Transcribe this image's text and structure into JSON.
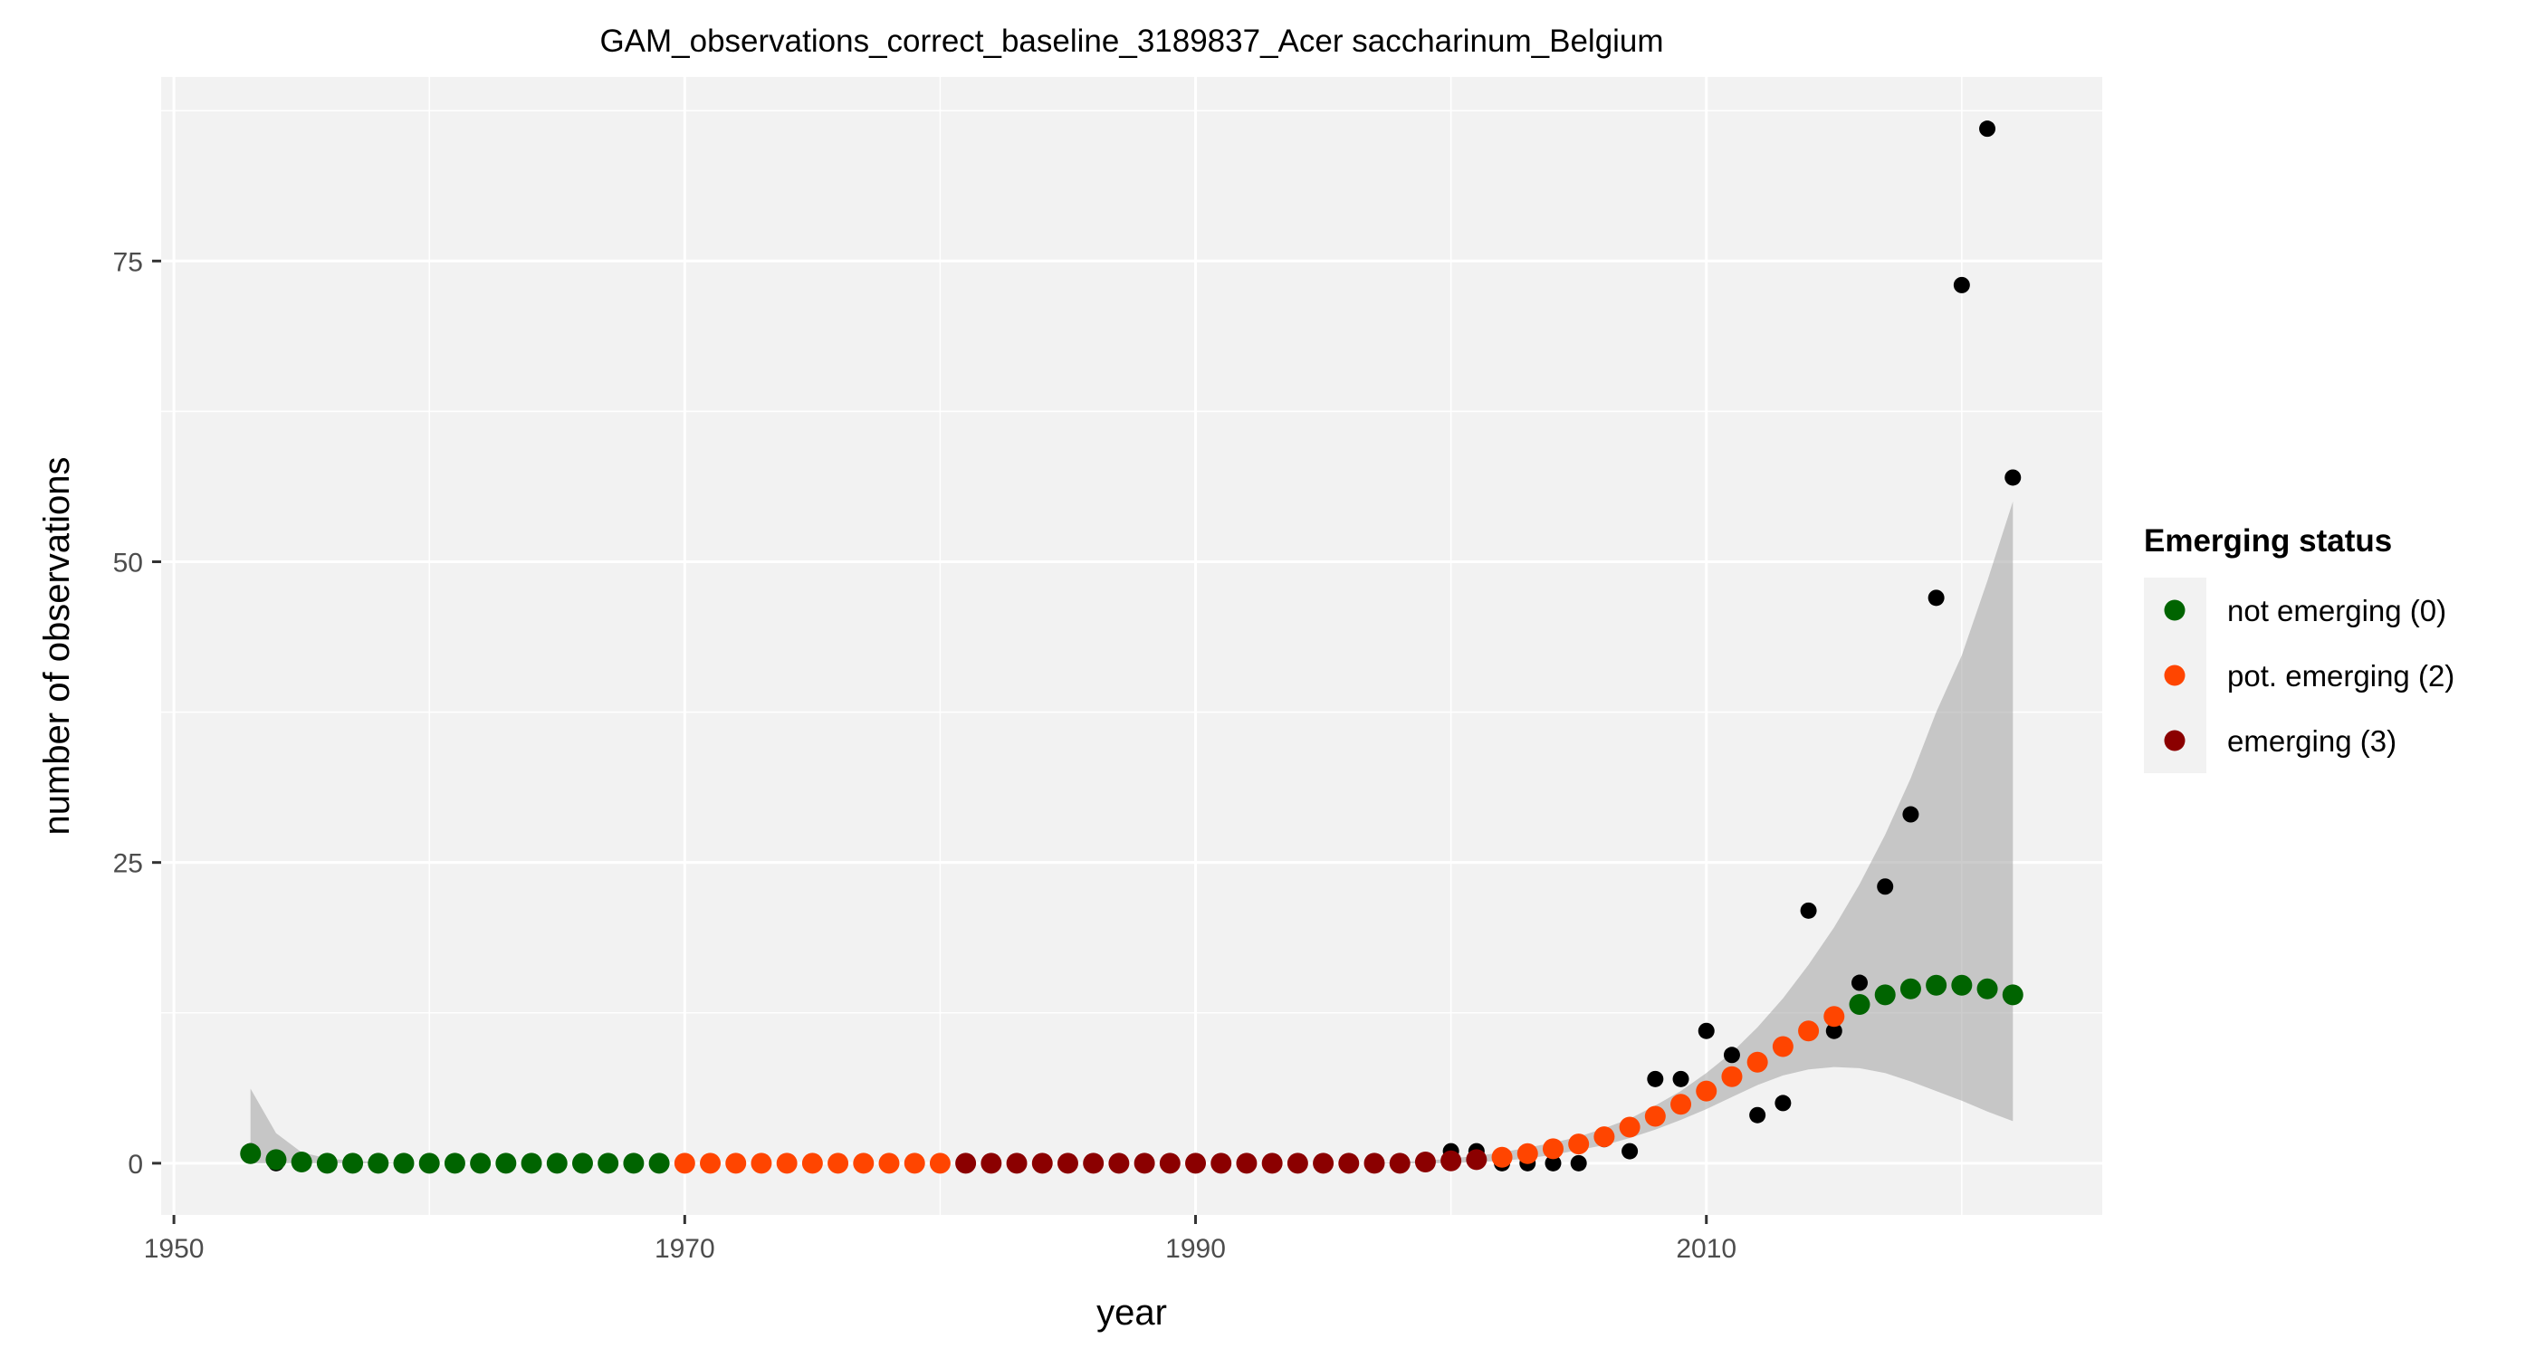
{
  "chart_data": {
    "type": "scatter",
    "title": "GAM_observations_correct_baseline_3189837_Acer saccharinum_Belgium",
    "xlabel": "year",
    "ylabel": "number of observations",
    "xlim": [
      1949.5,
      2025.5
    ],
    "ylim": [
      -4.3,
      90.3
    ],
    "x_ticks": [
      1950,
      1970,
      1990,
      2010
    ],
    "x_tick_labels": [
      "1950",
      "1970",
      "1990",
      "2010"
    ],
    "y_ticks": [
      0,
      25,
      50,
      75
    ],
    "y_tick_labels": [
      "0",
      "25",
      "50",
      "75"
    ],
    "grid": true,
    "panel_background": "#f2f2f2",
    "grid_color": "#ffffff",
    "legend": {
      "title": "Emerging status",
      "position": "right",
      "entries": [
        {
          "label": "not emerging (0)",
          "color": "#006400"
        },
        {
          "label": "pot. emerging (2)",
          "color": "#ff4500"
        },
        {
          "label": "emerging (3)",
          "color": "#8b0000"
        }
      ]
    },
    "observed": {
      "color": "#000000",
      "x": [
        1953,
        1954,
        1955,
        1956,
        1957,
        1958,
        1959,
        1960,
        1961,
        1962,
        1963,
        1964,
        1965,
        1966,
        1967,
        1968,
        1969,
        1970,
        1971,
        1972,
        1973,
        1974,
        1975,
        1976,
        1977,
        1978,
        1979,
        1980,
        1981,
        1982,
        1983,
        1984,
        1985,
        1986,
        1987,
        1988,
        1989,
        1990,
        1991,
        1992,
        1993,
        1994,
        1995,
        1996,
        1997,
        1998,
        1999,
        2000,
        2001,
        2002,
        2003,
        2004,
        2005,
        2006,
        2007,
        2008,
        2009,
        2010,
        2011,
        2012,
        2013,
        2014,
        2015,
        2016,
        2017,
        2018,
        2019,
        2020,
        2021,
        2022
      ],
      "y": [
        1,
        0,
        0,
        0,
        0,
        0,
        0,
        0,
        0,
        0,
        0,
        0,
        0,
        0,
        0,
        0,
        0,
        0,
        0,
        0,
        0,
        0,
        0,
        0,
        0,
        0,
        0,
        0,
        0,
        0,
        0,
        0,
        0,
        0,
        0,
        0,
        0,
        0,
        0,
        0,
        0,
        0,
        0,
        0,
        0,
        0,
        0,
        1,
        1,
        0,
        0,
        0,
        0,
        2,
        1,
        7,
        7,
        11,
        9,
        4,
        5,
        21,
        11,
        15,
        23,
        29,
        47,
        73,
        86,
        57
      ]
    },
    "fitted": {
      "x": [
        1953,
        1954,
        1955,
        1956,
        1957,
        1958,
        1959,
        1960,
        1961,
        1962,
        1963,
        1964,
        1965,
        1966,
        1967,
        1968,
        1969,
        1970,
        1971,
        1972,
        1973,
        1974,
        1975,
        1976,
        1977,
        1978,
        1979,
        1980,
        1981,
        1982,
        1983,
        1984,
        1985,
        1986,
        1987,
        1988,
        1989,
        1990,
        1991,
        1992,
        1993,
        1994,
        1995,
        1996,
        1997,
        1998,
        1999,
        2000,
        2001,
        2002,
        2003,
        2004,
        2005,
        2006,
        2007,
        2008,
        2009,
        2010,
        2011,
        2012,
        2013,
        2014,
        2015,
        2016,
        2017,
        2018,
        2019,
        2020,
        2021,
        2022
      ],
      "y": [
        0.8,
        0.3,
        0.1,
        0,
        0,
        0,
        0,
        0,
        0,
        0,
        0,
        0,
        0,
        0,
        0,
        0,
        0,
        0,
        0,
        0,
        0,
        0,
        0,
        0,
        0,
        0,
        0,
        0,
        0,
        0,
        0,
        0,
        0,
        0,
        0,
        0,
        0,
        0,
        0,
        0,
        0,
        0,
        0,
        0,
        0,
        0,
        0.1,
        0.2,
        0.3,
        0.5,
        0.8,
        1.2,
        1.6,
        2.2,
        3,
        3.9,
        4.9,
        6,
        7.2,
        8.4,
        9.7,
        11,
        12.2,
        13.2,
        14,
        14.5,
        14.8,
        14.8,
        14.5,
        14
      ],
      "status": [
        0,
        0,
        0,
        0,
        0,
        0,
        0,
        0,
        0,
        0,
        0,
        0,
        0,
        0,
        0,
        0,
        0,
        2,
        2,
        2,
        2,
        2,
        2,
        2,
        2,
        2,
        2,
        2,
        3,
        3,
        3,
        3,
        3,
        3,
        3,
        3,
        3,
        3,
        3,
        3,
        3,
        3,
        3,
        3,
        3,
        3,
        3,
        3,
        3,
        2,
        2,
        2,
        2,
        2,
        2,
        2,
        2,
        2,
        2,
        2,
        2,
        2,
        2,
        0,
        0,
        0,
        0,
        0,
        0,
        0
      ],
      "lower": [
        0,
        0,
        0,
        0,
        0,
        0,
        0,
        0,
        0,
        0,
        0,
        0,
        0,
        0,
        0,
        0,
        0,
        0,
        0,
        0,
        0,
        0,
        0,
        0,
        0,
        0,
        0,
        0,
        0,
        0,
        0,
        0,
        0,
        0,
        0,
        0,
        0,
        0,
        0,
        0,
        0,
        0,
        0,
        0,
        0,
        0,
        0,
        0,
        0.1,
        0.2,
        0.4,
        0.7,
        1.1,
        1.5,
        2.1,
        2.8,
        3.6,
        4.5,
        5.5,
        6.5,
        7.3,
        7.8,
        8,
        7.9,
        7.5,
        6.8,
        6,
        5.2,
        4.3,
        3.5
      ],
      "upper": [
        6.2,
        2.5,
        0.9,
        0.4,
        0.2,
        0.1,
        0,
        0,
        0,
        0,
        0,
        0,
        0,
        0,
        0,
        0,
        0,
        0,
        0,
        0,
        0,
        0,
        0,
        0,
        0,
        0,
        0,
        0,
        0,
        0,
        0,
        0,
        0,
        0,
        0,
        0,
        0,
        0,
        0,
        0,
        0,
        0,
        0,
        0,
        0,
        0.1,
        0.2,
        0.4,
        0.6,
        0.9,
        1.3,
        1.7,
        2.2,
        2.9,
        3.7,
        4.8,
        6,
        7.5,
        9.2,
        11.3,
        13.7,
        16.5,
        19.6,
        23.2,
        27.3,
        32,
        37.5,
        42.2,
        48.4,
        55
      ]
    }
  }
}
